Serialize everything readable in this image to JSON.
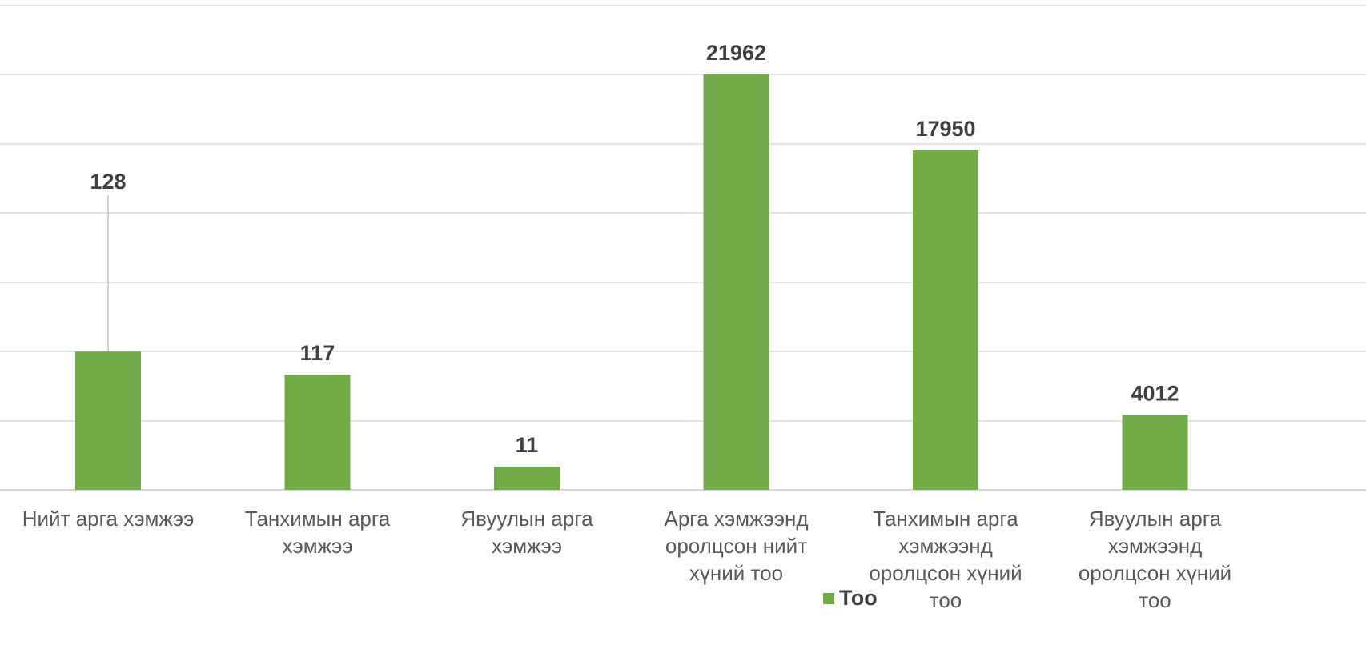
{
  "chart_data": {
    "type": "bar",
    "categories": [
      "Нийт арга хэмжээ",
      "Танхимын арга хэмжээ",
      "Явуулын арга хэмжээ",
      "Арга хэмжээнд оролцсон нийт хүний тоо",
      "Танхимын арга хэмжээнд оролцсон хүний тоо",
      "Явуулын арга хэмжээнд оролцсон хүний тоо"
    ],
    "category_lines": [
      [
        "Нийт арга хэмжээ"
      ],
      [
        "Танхимын арга",
        "хэмжээ"
      ],
      [
        "Явуулын арга",
        "хэмжээ"
      ],
      [
        "Арга хэмжээнд",
        "оролцсон нийт",
        "хүний тоо"
      ],
      [
        "Танхимын арга",
        "хэмжээнд",
        "оролцсон хүний",
        "тоо"
      ],
      [
        "Явуулын арга",
        "хэмжээнд",
        "оролцсон хүний",
        "тоо"
      ]
    ],
    "series": [
      {
        "name": "Тоо",
        "values": [
          128,
          117,
          11,
          21962,
          17950,
          4012
        ],
        "labels": [
          "128",
          "117",
          "11",
          "21962",
          "17950",
          "4012"
        ],
        "relative_heights": [
          0.333,
          0.277,
          0.056,
          1.0,
          0.817,
          0.18
        ],
        "color": "#70AD47"
      }
    ],
    "title": "",
    "xlabel": "",
    "ylabel": "",
    "grid": true,
    "legend": "bottom",
    "colors": {
      "bar": "#70AD47",
      "grid": "#D9D9D9",
      "label": "#404040",
      "axis_text": "#595959"
    }
  }
}
